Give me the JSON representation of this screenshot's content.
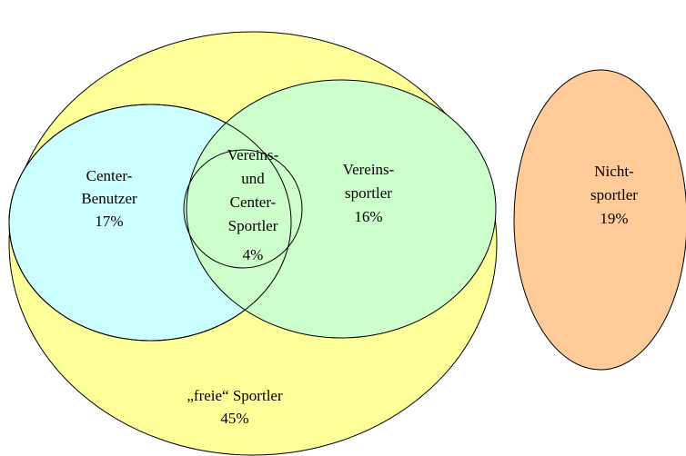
{
  "nodes": [
    {
      "lines": [
        "Center-",
        "Benutzer"
      ],
      "value": "17%"
    },
    {
      "lines": [
        "Vereins-",
        "und",
        "Center-",
        "Sportler"
      ],
      "value": "4%"
    },
    {
      "lines": [
        "Vereins-",
        "sportler"
      ],
      "value": "16%"
    },
    {
      "lines": [
        "Nicht-",
        "sportler"
      ],
      "value": "19%"
    },
    {
      "lines": [
        "„freie“ Sportler"
      ],
      "value": "45%"
    }
  ]
}
